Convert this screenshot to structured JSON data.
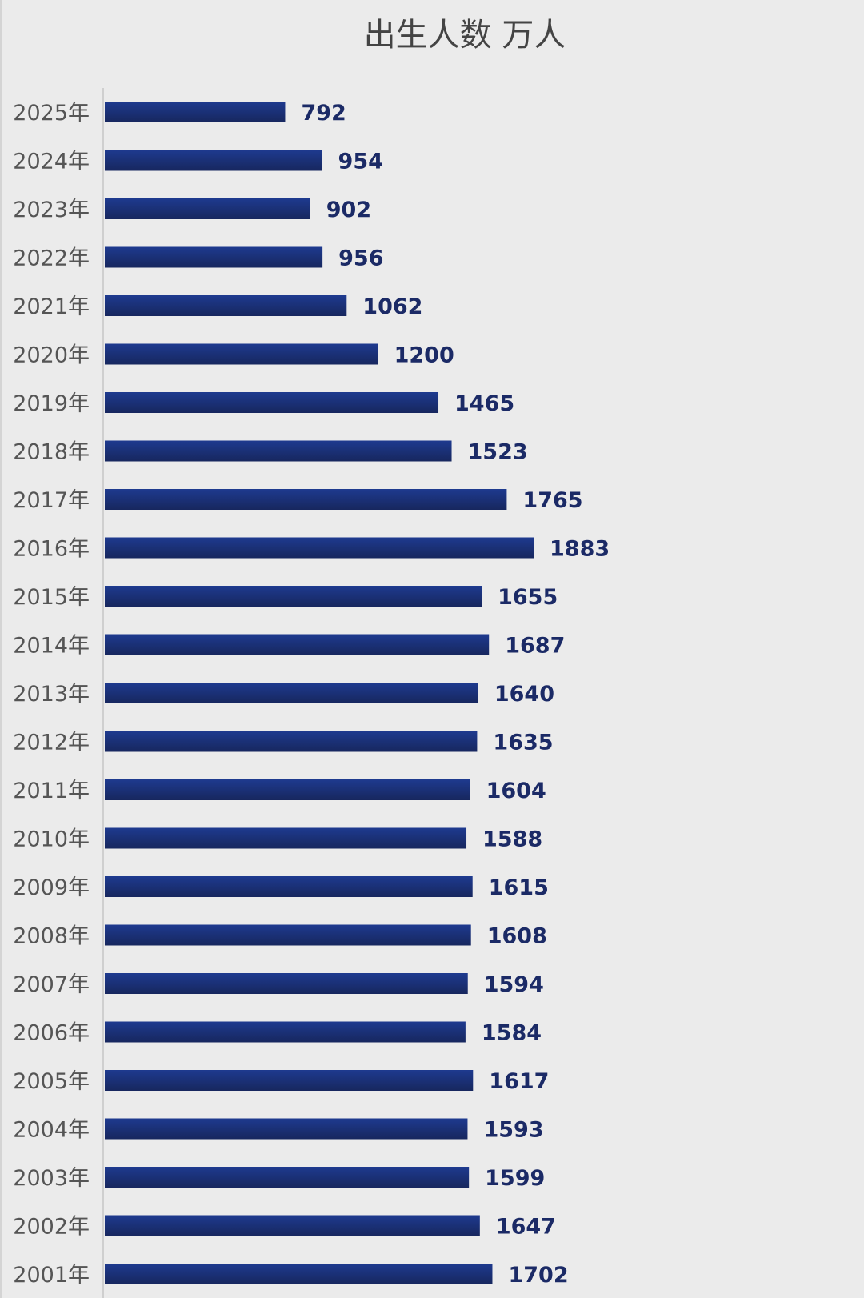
{
  "chart_data": {
    "type": "bar",
    "orientation": "horizontal",
    "title": "出生人数 万人",
    "xlabel": "",
    "ylabel": "",
    "categories": [
      "2025年",
      "2024年",
      "2023年",
      "2022年",
      "2021年",
      "2020年",
      "2019年",
      "2018年",
      "2017年",
      "2016年",
      "2015年",
      "2014年",
      "2013年",
      "2012年",
      "2011年",
      "2010年",
      "2009年",
      "2008年",
      "2007年",
      "2006年",
      "2005年",
      "2004年",
      "2003年",
      "2002年",
      "2001年"
    ],
    "values": [
      792,
      954,
      902,
      956,
      1062,
      1200,
      1465,
      1523,
      1765,
      1883,
      1655,
      1687,
      1640,
      1635,
      1604,
      1588,
      1615,
      1608,
      1594,
      1584,
      1617,
      1593,
      1599,
      1647,
      1702
    ],
    "xlim": [
      0,
      1883
    ],
    "grid": false,
    "legend": "none",
    "data_labels": true,
    "bar_color": "#1a2f7a",
    "label_color": "#1b2a66"
  }
}
